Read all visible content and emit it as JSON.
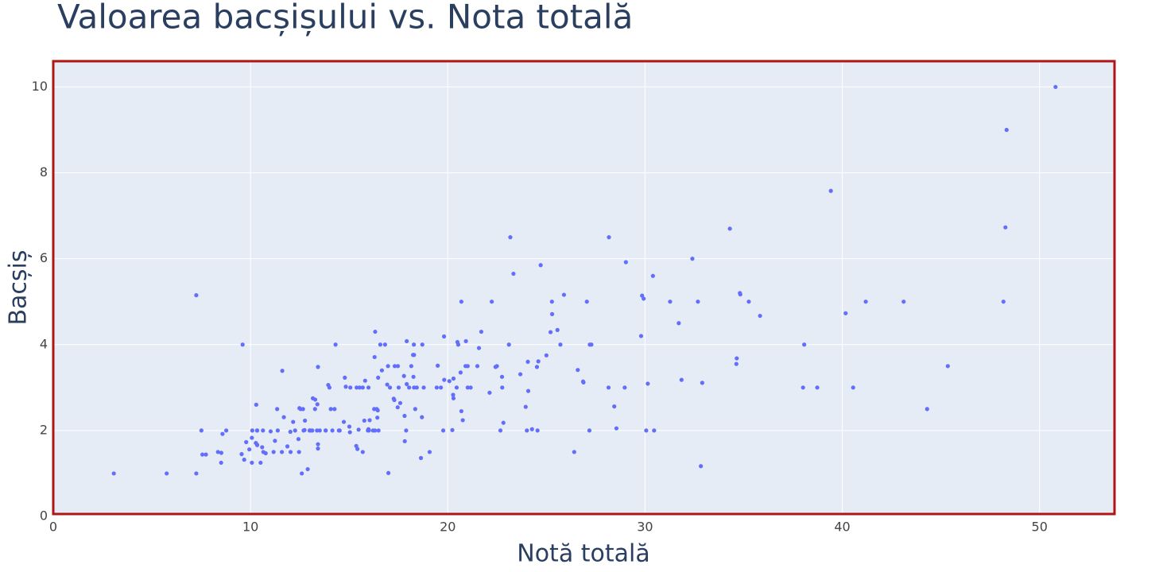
{
  "chart_data": {
    "type": "scatter",
    "title": "Valoarea bacșișului vs. Nota totală",
    "x_label": "Notă totală",
    "y_label": "Bacșiș",
    "color": "#636efa",
    "grid": true,
    "xlim": [
      0,
      53.8
    ],
    "ylim": [
      0,
      10.6
    ],
    "xticks": [
      0,
      10,
      20,
      30,
      40,
      50
    ],
    "yticks": [
      0,
      2,
      4,
      6,
      8,
      10
    ],
    "x": [
      16.99,
      10.34,
      21.01,
      23.68,
      24.59,
      25.29,
      8.77,
      26.88,
      15.04,
      14.78,
      10.27,
      35.26,
      15.42,
      18.43,
      14.83,
      21.58,
      10.33,
      16.29,
      16.97,
      20.65,
      17.92,
      20.29,
      15.77,
      39.42,
      19.82,
      17.81,
      13.37,
      12.69,
      21.7,
      19.65,
      9.55,
      18.35,
      15.06,
      20.69,
      17.78,
      24.06,
      16.31,
      16.93,
      18.69,
      31.27,
      16.04,
      17.46,
      13.94,
      9.68,
      30.4,
      18.29,
      22.23,
      32.4,
      28.55,
      18.04,
      12.54,
      10.29,
      34.81,
      9.94,
      25.56,
      19.49,
      38.01,
      26.41,
      11.24,
      48.27,
      20.29,
      13.81,
      11.02,
      18.29,
      17.59,
      20.08,
      16.45,
      3.07,
      20.23,
      15.01,
      12.02,
      17.07,
      26.86,
      25.28,
      14.73,
      10.51,
      17.92,
      27.2,
      22.76,
      17.29,
      19.44,
      16.66,
      10.07,
      32.68,
      15.98,
      34.83,
      13.03,
      18.28,
      24.71,
      21.16,
      28.97,
      22.49,
      5.75,
      16.32,
      22.75,
      40.17,
      27.28,
      12.03,
      21.01,
      12.46,
      11.35,
      15.38,
      44.3,
      22.42,
      20.92,
      15.36,
      20.49,
      25.21,
      18.24,
      14.31,
      14.0,
      7.25,
      38.07,
      23.95,
      25.71,
      17.31,
      29.93,
      10.65,
      12.43,
      24.08,
      11.69,
      13.42,
      14.26,
      15.95,
      12.48,
      29.8,
      8.52,
      14.52,
      11.38,
      22.82,
      19.08,
      20.27,
      11.17,
      12.26,
      18.26,
      8.51,
      10.33,
      14.15,
      16.0,
      13.16,
      17.47,
      34.3,
      41.19,
      27.05,
      16.43,
      8.35,
      18.64,
      11.87,
      9.78,
      7.51,
      14.07,
      13.13,
      17.26,
      24.55,
      19.77,
      29.85,
      48.17,
      25.0,
      13.39,
      16.49,
      21.5,
      12.66,
      16.21,
      13.81,
      17.51,
      24.52,
      20.76,
      31.71,
      10.59,
      10.63,
      50.81,
      15.81,
      7.25,
      31.85,
      16.82,
      32.9,
      17.89,
      14.48,
      9.6,
      34.63,
      34.65,
      23.33,
      45.35,
      23.17,
      40.55,
      20.69,
      20.9,
      30.46,
      18.15,
      23.1,
      15.69,
      19.81,
      28.44,
      15.48,
      16.58,
      7.56,
      10.34,
      43.11,
      13.0,
      13.51,
      18.71,
      12.74,
      13.0,
      16.4,
      20.53,
      16.47,
      26.59,
      38.73,
      24.27,
      12.76,
      30.06,
      25.89,
      48.33,
      13.27,
      28.17,
      12.9,
      28.15,
      11.59,
      7.74,
      30.14,
      12.16,
      13.42,
      8.58,
      15.98,
      13.42,
      16.27,
      10.09,
      20.45,
      13.28,
      22.12,
      24.01,
      15.69,
      11.61,
      10.77,
      15.53,
      10.07,
      12.6,
      32.83,
      35.83,
      29.03,
      27.18,
      22.67,
      17.82,
      18.78
    ],
    "values": [
      1.01,
      1.66,
      3.5,
      3.31,
      3.61,
      4.71,
      2.0,
      3.12,
      1.96,
      3.23,
      1.71,
      5.0,
      1.57,
      3.0,
      3.02,
      3.92,
      1.67,
      3.71,
      3.5,
      3.35,
      4.08,
      2.75,
      2.23,
      7.58,
      3.18,
      2.34,
      2.0,
      2.0,
      4.3,
      3.0,
      1.45,
      2.5,
      3.0,
      2.45,
      3.27,
      3.6,
      2.0,
      3.07,
      2.31,
      5.0,
      2.24,
      2.54,
      3.06,
      1.32,
      5.6,
      3.0,
      5.0,
      6.0,
      2.05,
      3.0,
      2.5,
      2.6,
      5.2,
      1.56,
      4.34,
      3.51,
      3.0,
      1.5,
      1.76,
      6.73,
      3.21,
      2.0,
      1.98,
      3.76,
      2.64,
      3.15,
      2.47,
      1.0,
      2.01,
      2.09,
      1.97,
      3.0,
      3.14,
      5.0,
      2.2,
      1.25,
      3.08,
      4.0,
      3.0,
      2.71,
      3.0,
      3.4,
      1.83,
      5.0,
      2.03,
      5.17,
      2.0,
      4.0,
      5.85,
      3.0,
      3.0,
      3.5,
      1.0,
      4.3,
      3.25,
      4.73,
      4.0,
      1.5,
      3.0,
      1.5,
      2.5,
      3.0,
      2.5,
      3.48,
      4.08,
      1.64,
      4.06,
      4.29,
      3.76,
      4.0,
      3.0,
      1.0,
      4.0,
      2.55,
      4.0,
      3.5,
      5.07,
      1.5,
      1.8,
      2.92,
      2.31,
      1.68,
      2.5,
      2.0,
      2.52,
      4.2,
      1.48,
      2.0,
      2.0,
      2.18,
      1.5,
      2.83,
      1.5,
      2.0,
      3.25,
      1.25,
      2.0,
      2.0,
      2.0,
      2.75,
      3.5,
      6.7,
      5.0,
      5.0,
      2.3,
      1.5,
      1.36,
      1.63,
      1.73,
      2.0,
      2.5,
      2.0,
      2.74,
      2.0,
      2.0,
      5.14,
      5.0,
      3.75,
      2.61,
      2.0,
      3.5,
      2.5,
      2.0,
      2.0,
      3.0,
      3.48,
      2.24,
      4.5,
      1.61,
      2.0,
      10.0,
      3.16,
      5.15,
      3.18,
      4.0,
      3.11,
      2.0,
      2.0,
      4.0,
      3.55,
      3.68,
      5.65,
      3.5,
      6.5,
      3.0,
      5.0,
      3.5,
      2.0,
      3.5,
      4.0,
      1.5,
      4.19,
      2.56,
      2.02,
      4.0,
      1.44,
      2.0,
      5.0,
      2.0,
      2.0,
      4.0,
      2.01,
      2.0,
      2.5,
      4.0,
      3.23,
      3.41,
      3.0,
      2.03,
      2.23,
      2.0,
      5.16,
      9.0,
      2.5,
      6.5,
      1.1,
      3.0,
      1.5,
      1.44,
      3.09,
      2.2,
      3.48,
      1.92,
      3.0,
      1.58,
      2.5,
      2.0,
      3.0,
      2.72,
      2.88,
      2.0,
      3.0,
      3.39,
      1.47,
      3.0,
      1.25,
      1.0,
      1.17,
      4.67,
      5.92,
      2.0,
      2.0,
      1.75,
      3.0
    ]
  }
}
